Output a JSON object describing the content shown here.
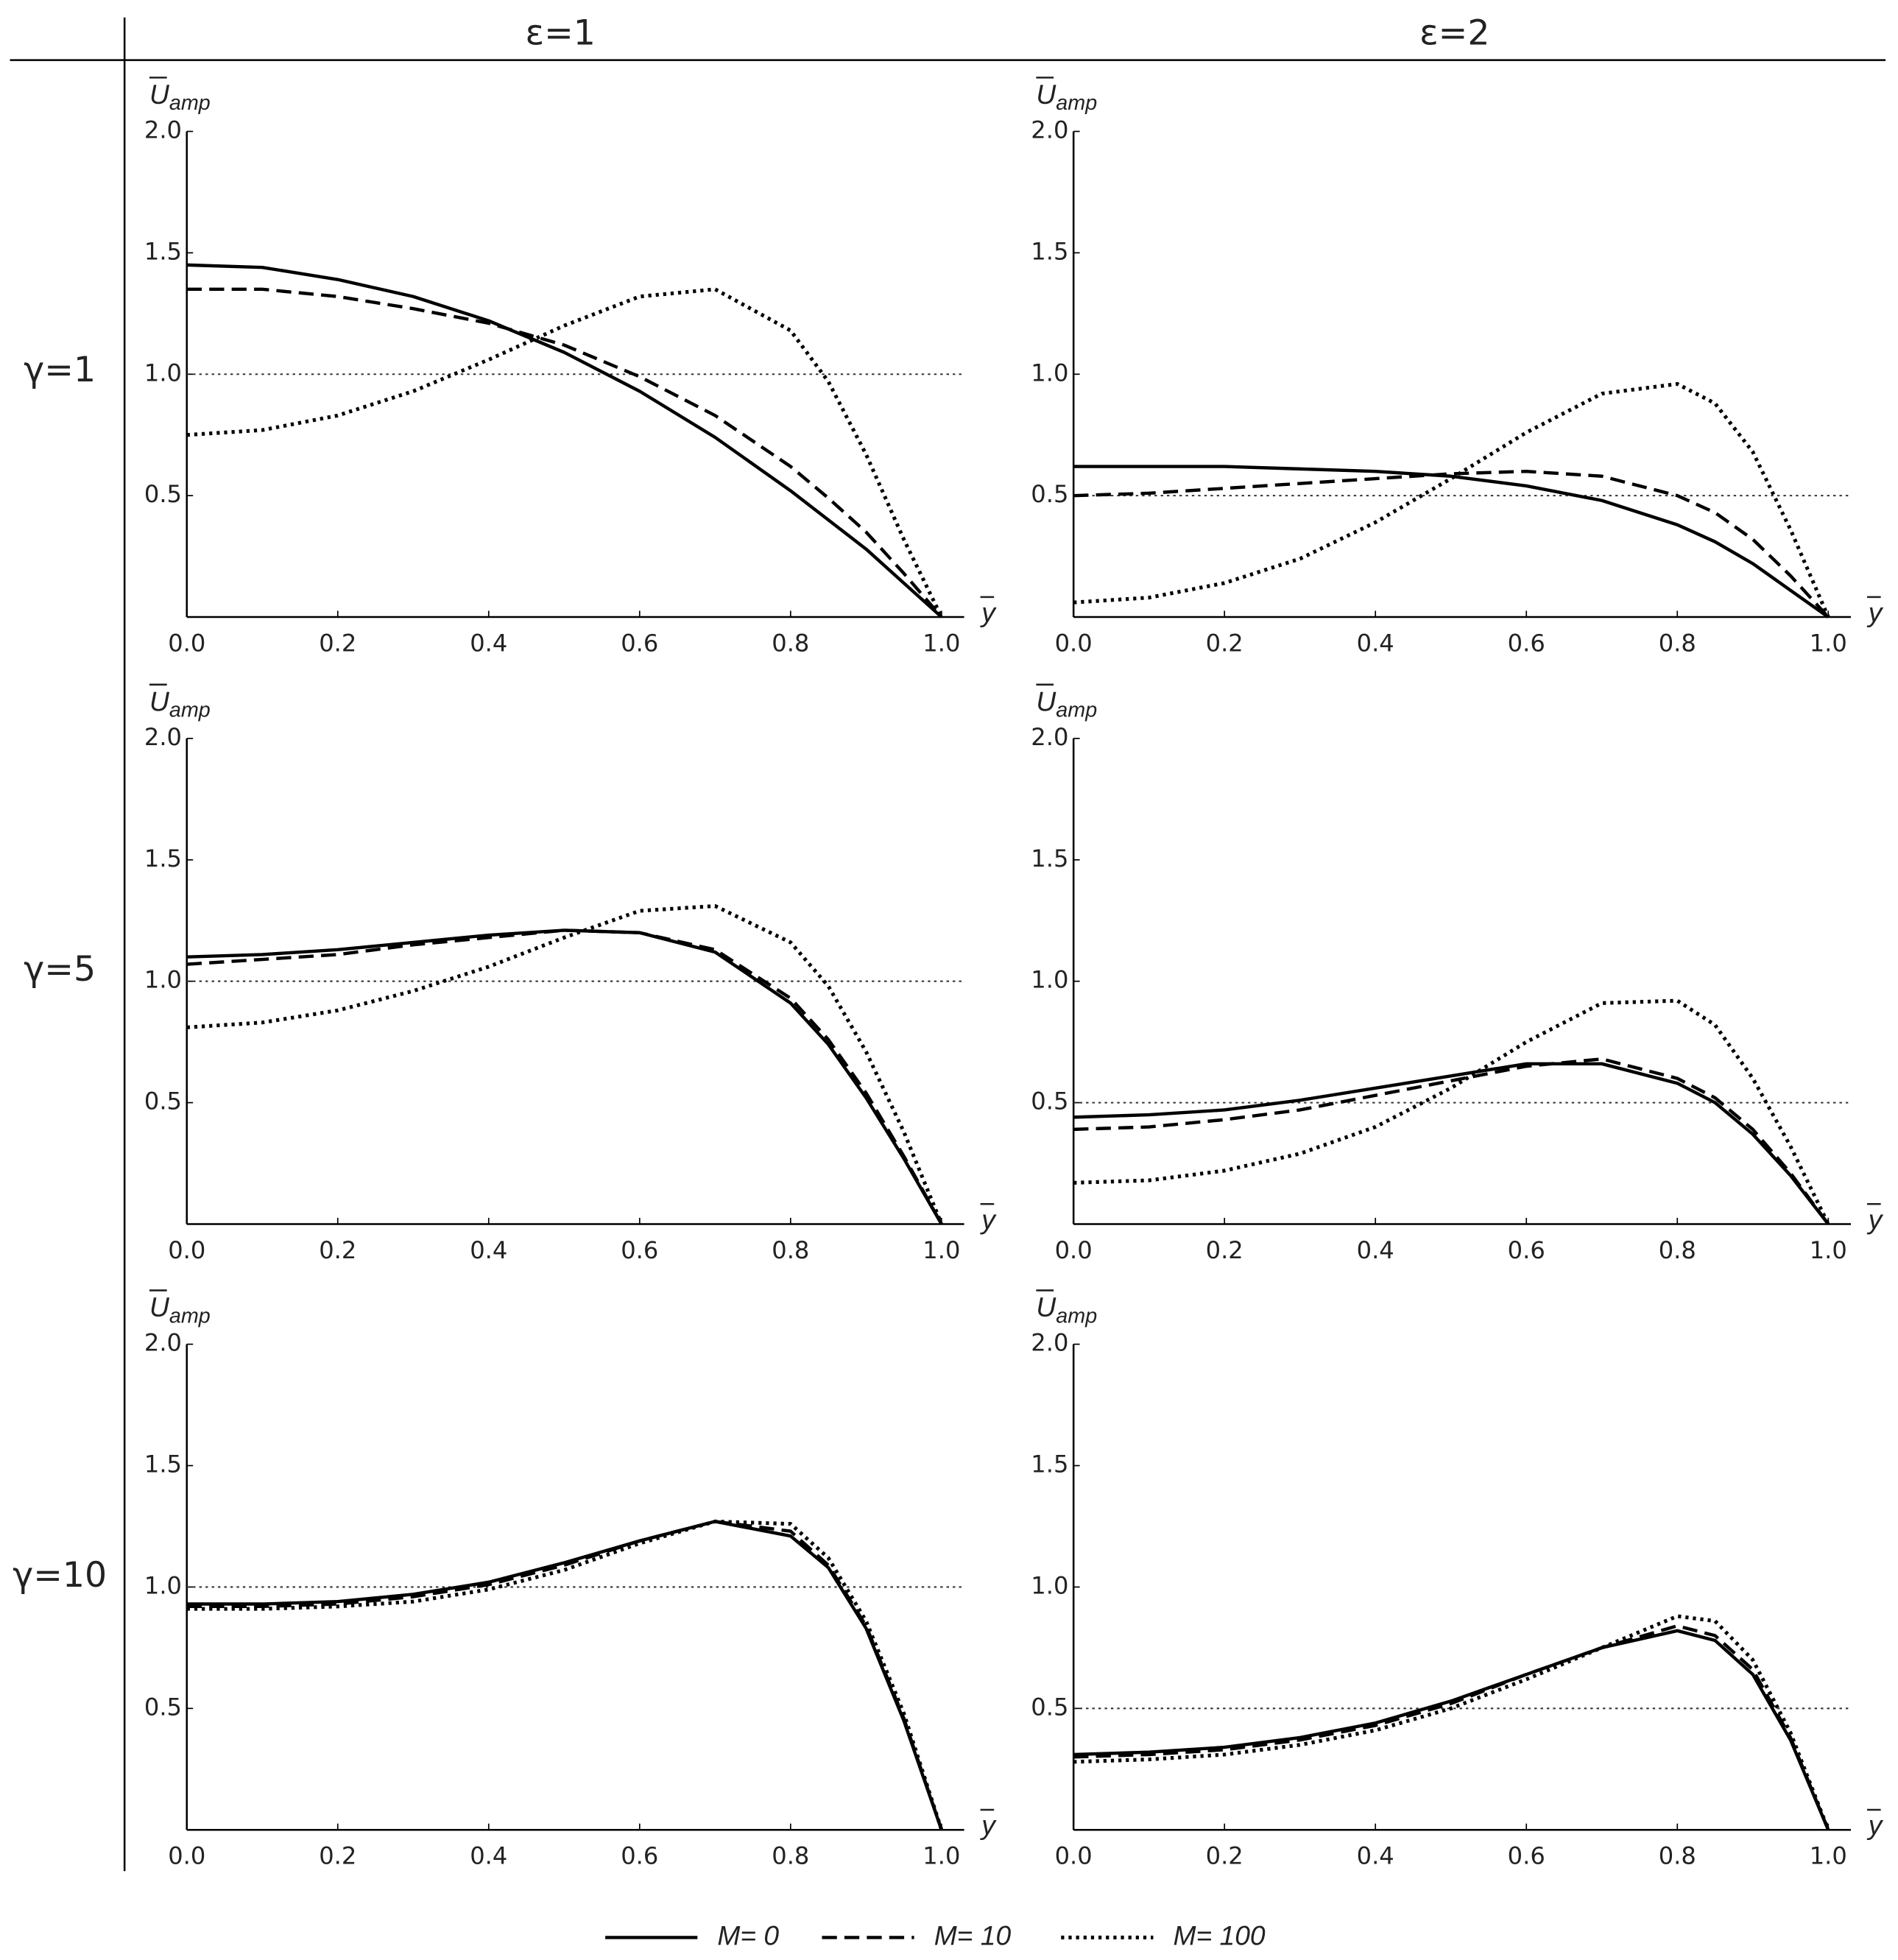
{
  "table": {
    "columns": [
      "ε=1",
      "ε=2"
    ],
    "rows": [
      "γ=1",
      "γ=5",
      "γ=10"
    ]
  },
  "chart_data": [
    {
      "type": "line",
      "xlabel": "y",
      "ylabel": "U",
      "ylabel_sub": "amp",
      "xlim": [
        0,
        1.03
      ],
      "ylim": [
        0,
        2
      ],
      "hline": 1,
      "xticks": [
        {
          "value": 0,
          "label": "0.0"
        },
        0.2,
        0.4,
        0.6,
        0.8,
        {
          "value": 1,
          "label": "1.0"
        }
      ],
      "yticks": [
        0.5,
        {
          "value": 1,
          "label": "1.0"
        },
        1.5,
        {
          "value": 2,
          "label": "2.0"
        }
      ],
      "x": [
        0,
        0.1,
        0.2,
        0.3,
        0.4,
        0.5,
        0.6,
        0.7,
        0.8,
        0.85,
        0.9,
        0.95,
        1
      ],
      "series": [
        {
          "name": "M= 0",
          "color": "#000",
          "style": "solid",
          "values": [
            1.45,
            1.44,
            1.39,
            1.32,
            1.22,
            1.09,
            0.93,
            0.74,
            0.52,
            0.4,
            0.28,
            0.14,
            0
          ]
        },
        {
          "name": "M= 10",
          "color": "#000",
          "style": "dashed",
          "values": [
            1.35,
            1.35,
            1.32,
            1.27,
            1.21,
            1.12,
            0.99,
            0.83,
            0.62,
            0.49,
            0.35,
            0.18,
            0
          ]
        },
        {
          "name": "M= 100",
          "color": "#000",
          "style": "dotted",
          "values": [
            0.75,
            0.77,
            0.83,
            0.93,
            1.06,
            1.2,
            1.32,
            1.35,
            1.18,
            0.97,
            0.67,
            0.32,
            0
          ]
        }
      ]
    },
    {
      "type": "line",
      "xlabel": "y",
      "ylabel": "U",
      "ylabel_sub": "amp",
      "xlim": [
        0,
        1.03
      ],
      "ylim": [
        0,
        2
      ],
      "hline": 0.5,
      "xticks": [
        {
          "value": 0,
          "label": "0.0"
        },
        0.2,
        0.4,
        0.6,
        0.8,
        {
          "value": 1,
          "label": "1.0"
        }
      ],
      "yticks": [
        0.5,
        {
          "value": 1,
          "label": "1.0"
        },
        1.5,
        {
          "value": 2,
          "label": "2.0"
        }
      ],
      "x": [
        0,
        0.1,
        0.2,
        0.3,
        0.4,
        0.5,
        0.6,
        0.7,
        0.8,
        0.85,
        0.9,
        0.95,
        1
      ],
      "series": [
        {
          "name": "M= 0",
          "color": "#000",
          "style": "solid",
          "values": [
            0.62,
            0.62,
            0.62,
            0.61,
            0.6,
            0.58,
            0.54,
            0.48,
            0.38,
            0.31,
            0.22,
            0.11,
            0
          ]
        },
        {
          "name": "M= 10",
          "color": "#000",
          "style": "dashed",
          "values": [
            0.5,
            0.51,
            0.53,
            0.55,
            0.57,
            0.59,
            0.6,
            0.58,
            0.5,
            0.43,
            0.32,
            0.17,
            0
          ]
        },
        {
          "name": "M= 100",
          "color": "#000",
          "style": "dotted",
          "values": [
            0.06,
            0.08,
            0.14,
            0.24,
            0.39,
            0.57,
            0.76,
            0.92,
            0.96,
            0.88,
            0.68,
            0.36,
            0
          ]
        }
      ]
    },
    {
      "type": "line",
      "xlabel": "y",
      "ylabel": "U",
      "ylabel_sub": "amp",
      "xlim": [
        0,
        1.03
      ],
      "ylim": [
        0,
        2
      ],
      "hline": 1,
      "xticks": [
        {
          "value": 0,
          "label": "0.0"
        },
        0.2,
        0.4,
        0.6,
        0.8,
        {
          "value": 1,
          "label": "1.0"
        }
      ],
      "yticks": [
        0.5,
        {
          "value": 1,
          "label": "1.0"
        },
        1.5,
        {
          "value": 2,
          "label": "2.0"
        }
      ],
      "x": [
        0,
        0.1,
        0.2,
        0.3,
        0.4,
        0.5,
        0.6,
        0.7,
        0.8,
        0.85,
        0.9,
        0.95,
        1
      ],
      "series": [
        {
          "name": "M= 0",
          "color": "#000",
          "style": "solid",
          "values": [
            1.1,
            1.11,
            1.13,
            1.16,
            1.19,
            1.21,
            1.2,
            1.12,
            0.91,
            0.74,
            0.52,
            0.27,
            0
          ]
        },
        {
          "name": "M= 10",
          "color": "#000",
          "style": "dashed",
          "values": [
            1.07,
            1.09,
            1.11,
            1.15,
            1.18,
            1.21,
            1.2,
            1.13,
            0.93,
            0.76,
            0.54,
            0.28,
            0
          ]
        },
        {
          "name": "M= 100",
          "color": "#000",
          "style": "dotted",
          "values": [
            0.81,
            0.83,
            0.88,
            0.96,
            1.06,
            1.18,
            1.29,
            1.31,
            1.16,
            0.98,
            0.71,
            0.38,
            0
          ]
        }
      ]
    },
    {
      "type": "line",
      "xlabel": "y",
      "ylabel": "U",
      "ylabel_sub": "amp",
      "xlim": [
        0,
        1.03
      ],
      "ylim": [
        0,
        2
      ],
      "hline": 0.5,
      "xticks": [
        {
          "value": 0,
          "label": "0.0"
        },
        0.2,
        0.4,
        0.6,
        0.8,
        {
          "value": 1,
          "label": "1.0"
        }
      ],
      "yticks": [
        0.5,
        {
          "value": 1,
          "label": "1.0"
        },
        1.5,
        {
          "value": 2,
          "label": "2.0"
        }
      ],
      "x": [
        0,
        0.1,
        0.2,
        0.3,
        0.4,
        0.5,
        0.6,
        0.7,
        0.8,
        0.85,
        0.9,
        0.95,
        1
      ],
      "series": [
        {
          "name": "M= 0",
          "color": "#000",
          "style": "solid",
          "values": [
            0.44,
            0.45,
            0.47,
            0.51,
            0.56,
            0.61,
            0.66,
            0.66,
            0.58,
            0.5,
            0.37,
            0.2,
            0
          ]
        },
        {
          "name": "M= 10",
          "color": "#000",
          "style": "dashed",
          "values": [
            0.39,
            0.4,
            0.43,
            0.47,
            0.53,
            0.59,
            0.65,
            0.68,
            0.6,
            0.52,
            0.39,
            0.21,
            0
          ]
        },
        {
          "name": "M= 100",
          "color": "#000",
          "style": "dotted",
          "values": [
            0.17,
            0.18,
            0.22,
            0.29,
            0.4,
            0.56,
            0.75,
            0.91,
            0.92,
            0.82,
            0.6,
            0.32,
            0
          ]
        }
      ]
    },
    {
      "type": "line",
      "xlabel": "y",
      "ylabel": "U",
      "ylabel_sub": "amp",
      "xlim": [
        0,
        1.03
      ],
      "ylim": [
        0,
        2
      ],
      "hline": 1,
      "xticks": [
        {
          "value": 0,
          "label": "0.0"
        },
        0.2,
        0.4,
        0.6,
        0.8,
        {
          "value": 1,
          "label": "1.0"
        }
      ],
      "yticks": [
        0.5,
        {
          "value": 1,
          "label": "1.0"
        },
        1.5,
        {
          "value": 2,
          "label": "2.0"
        }
      ],
      "x": [
        0,
        0.1,
        0.2,
        0.3,
        0.4,
        0.5,
        0.6,
        0.7,
        0.8,
        0.85,
        0.9,
        0.95,
        1
      ],
      "series": [
        {
          "name": "M= 0",
          "color": "#000",
          "style": "solid",
          "values": [
            0.93,
            0.93,
            0.94,
            0.97,
            1.02,
            1.1,
            1.19,
            1.27,
            1.21,
            1.08,
            0.83,
            0.45,
            0
          ]
        },
        {
          "name": "M= 10",
          "color": "#000",
          "style": "dashed",
          "values": [
            0.92,
            0.92,
            0.93,
            0.96,
            1.01,
            1.09,
            1.19,
            1.27,
            1.23,
            1.09,
            0.84,
            0.46,
            0
          ]
        },
        {
          "name": "M= 100",
          "color": "#000",
          "style": "dotted",
          "values": [
            0.91,
            0.91,
            0.92,
            0.94,
            0.99,
            1.07,
            1.18,
            1.27,
            1.26,
            1.12,
            0.86,
            0.48,
            0
          ]
        }
      ]
    },
    {
      "type": "line",
      "xlabel": "y",
      "ylabel": "U",
      "ylabel_sub": "amp",
      "xlim": [
        0,
        1.03
      ],
      "ylim": [
        0,
        2
      ],
      "hline": 0.5,
      "xticks": [
        {
          "value": 0,
          "label": "0.0"
        },
        0.2,
        0.4,
        0.6,
        0.8,
        {
          "value": 1,
          "label": "1.0"
        }
      ],
      "yticks": [
        0.5,
        {
          "value": 1,
          "label": "1.0"
        },
        1.5,
        {
          "value": 2,
          "label": "2.0"
        }
      ],
      "x": [
        0,
        0.1,
        0.2,
        0.3,
        0.4,
        0.5,
        0.6,
        0.7,
        0.8,
        0.85,
        0.9,
        0.95,
        1
      ],
      "series": [
        {
          "name": "M= 0",
          "color": "#000",
          "style": "solid",
          "values": [
            0.31,
            0.32,
            0.34,
            0.38,
            0.44,
            0.53,
            0.64,
            0.75,
            0.82,
            0.78,
            0.64,
            0.37,
            0
          ]
        },
        {
          "name": "M= 10",
          "color": "#000",
          "style": "dashed",
          "values": [
            0.3,
            0.31,
            0.33,
            0.37,
            0.43,
            0.52,
            0.64,
            0.75,
            0.84,
            0.8,
            0.66,
            0.38,
            0
          ]
        },
        {
          "name": "M= 100",
          "color": "#000",
          "style": "dotted",
          "values": [
            0.28,
            0.29,
            0.31,
            0.35,
            0.41,
            0.5,
            0.62,
            0.75,
            0.88,
            0.86,
            0.7,
            0.4,
            0
          ]
        }
      ]
    }
  ]
}
